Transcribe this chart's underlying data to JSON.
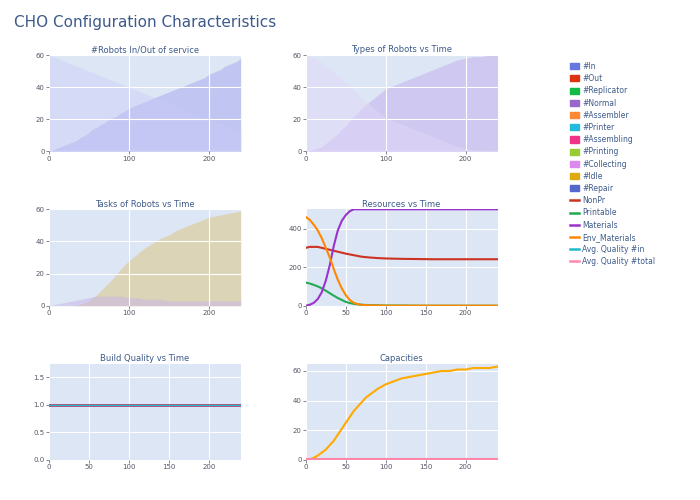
{
  "title": "CHO Configuration Characteristics",
  "title_color": "#3d5a8a",
  "bg_color": "#ffffff",
  "subplot_bg": "#dce6f5",
  "grid_color": "#ffffff",
  "subplots": [
    {
      "title": "#Robots In/Out of service",
      "row": 0,
      "col": 0,
      "xlim": [
        0,
        240
      ],
      "ylim": [
        0,
        60
      ],
      "xticks": [
        0,
        100,
        200
      ],
      "yticks": [
        0,
        20,
        40,
        60
      ],
      "series": [
        {
          "type": "fill",
          "color": "#aaaaee",
          "alpha": 0.55,
          "x": [
            0,
            5,
            10,
            15,
            20,
            25,
            30,
            35,
            40,
            45,
            50,
            55,
            60,
            65,
            70,
            75,
            80,
            85,
            90,
            95,
            100,
            105,
            110,
            115,
            120,
            125,
            130,
            135,
            140,
            145,
            150,
            155,
            160,
            165,
            170,
            175,
            180,
            185,
            190,
            195,
            200,
            205,
            210,
            215,
            220,
            225,
            230,
            235,
            240
          ],
          "y": [
            0,
            1,
            2,
            3,
            4,
            5,
            6,
            7,
            9,
            10,
            12,
            14,
            15,
            17,
            18,
            20,
            21,
            22,
            24,
            25,
            27,
            28,
            29,
            30,
            31,
            32,
            33,
            34,
            35,
            36,
            37,
            38,
            39,
            40,
            41,
            42,
            43,
            44,
            45,
            46,
            48,
            49,
            50,
            51,
            53,
            54,
            55,
            56,
            58
          ]
        },
        {
          "type": "fill",
          "color": "#ccccf8",
          "alpha": 0.4,
          "x": [
            0,
            5,
            10,
            15,
            20,
            25,
            30,
            35,
            40,
            45,
            50,
            55,
            60,
            65,
            70,
            75,
            80,
            85,
            90,
            95,
            100,
            105,
            110,
            115,
            120,
            125,
            130,
            135,
            140,
            145,
            150,
            155,
            160,
            165,
            170,
            175,
            180,
            185,
            190,
            195,
            200,
            205,
            210,
            215,
            220,
            225,
            230,
            235,
            240
          ],
          "y": [
            60,
            59,
            58,
            57,
            56,
            55,
            54,
            53,
            52,
            51,
            50,
            49,
            48,
            47,
            46,
            45,
            44,
            43,
            42,
            41,
            40,
            39,
            38,
            37,
            36,
            35,
            34,
            33,
            32,
            31,
            30,
            29,
            28,
            27,
            26,
            25,
            24,
            23,
            22,
            21,
            20,
            19,
            18,
            17,
            16,
            15,
            14,
            13,
            12
          ]
        }
      ]
    },
    {
      "title": "Types of Robots vs Time",
      "row": 0,
      "col": 1,
      "xlim": [
        0,
        240
      ],
      "ylim": [
        0,
        60
      ],
      "xticks": [
        0,
        100,
        200
      ],
      "yticks": [
        0,
        20,
        40,
        60
      ],
      "series": [
        {
          "type": "fill",
          "color": "#c8b8f0",
          "alpha": 0.65,
          "x": [
            0,
            5,
            10,
            15,
            20,
            25,
            30,
            35,
            40,
            45,
            50,
            55,
            60,
            65,
            70,
            75,
            80,
            85,
            90,
            95,
            100,
            110,
            120,
            130,
            140,
            150,
            160,
            170,
            180,
            190,
            200,
            210,
            220,
            230,
            240
          ],
          "y": [
            0,
            0.5,
            1,
            2,
            3,
            5,
            7,
            9,
            11,
            14,
            16,
            19,
            22,
            24,
            27,
            29,
            31,
            33,
            35,
            37,
            39,
            41,
            43,
            45,
            47,
            49,
            51,
            53,
            55,
            57,
            58,
            59,
            59,
            60,
            60
          ]
        },
        {
          "type": "fill",
          "color": "#e0d8f8",
          "alpha": 0.5,
          "x": [
            0,
            5,
            10,
            15,
            20,
            25,
            30,
            35,
            40,
            45,
            50,
            55,
            60,
            65,
            70,
            75,
            80,
            85,
            90,
            95,
            100,
            110,
            120,
            130,
            140,
            150,
            160,
            170,
            180,
            190,
            200,
            210,
            220,
            230,
            240
          ],
          "y": [
            60,
            59,
            58,
            57,
            55,
            53,
            51,
            49,
            47,
            45,
            43,
            41,
            38,
            36,
            33,
            31,
            29,
            27,
            25,
            23,
            21,
            19,
            17,
            15,
            13,
            11,
            9,
            7,
            5,
            3,
            2,
            1,
            1,
            0,
            0
          ]
        }
      ]
    },
    {
      "title": "Tasks of Robots vs Time",
      "row": 1,
      "col": 0,
      "xlim": [
        0,
        240
      ],
      "ylim": [
        0,
        60
      ],
      "xticks": [
        0,
        100,
        200
      ],
      "yticks": [
        0,
        20,
        40,
        60
      ],
      "series": [
        {
          "type": "fill",
          "color": "#ddd0a8",
          "alpha": 0.8,
          "x": [
            0,
            10,
            20,
            30,
            40,
            50,
            60,
            70,
            80,
            90,
            100,
            110,
            120,
            130,
            140,
            150,
            160,
            170,
            180,
            190,
            200,
            210,
            220,
            230,
            240
          ],
          "y": [
            0,
            0,
            0,
            0,
            1,
            3,
            7,
            12,
            17,
            23,
            28,
            32,
            36,
            39,
            42,
            44,
            47,
            49,
            51,
            53,
            55,
            56,
            57,
            58,
            59
          ]
        },
        {
          "type": "fill",
          "color": "#c8b4e8",
          "alpha": 0.5,
          "x": [
            0,
            10,
            20,
            30,
            40,
            50,
            60,
            70,
            80,
            90,
            100,
            110,
            120,
            130,
            140,
            150,
            160,
            170,
            180,
            190,
            200,
            210,
            220,
            230,
            240
          ],
          "y": [
            0,
            1,
            2,
            3,
            4,
            5,
            6,
            6,
            6,
            6,
            5,
            5,
            4,
            4,
            4,
            3,
            3,
            3,
            3,
            3,
            3,
            3,
            3,
            3,
            3
          ]
        }
      ]
    },
    {
      "title": "Resources vs Time",
      "row": 1,
      "col": 1,
      "xlim": [
        0,
        240
      ],
      "ylim": [
        0,
        500
      ],
      "xticks": [
        0,
        50,
        100,
        150,
        200
      ],
      "yticks": [
        0,
        200,
        400
      ],
      "series": [
        {
          "type": "line",
          "color": "#cc3322",
          "linewidth": 1.5,
          "x": [
            0,
            5,
            10,
            15,
            20,
            25,
            30,
            35,
            40,
            45,
            50,
            55,
            60,
            65,
            70,
            80,
            90,
            100,
            120,
            140,
            160,
            180,
            200,
            220,
            240
          ],
          "y": [
            300,
            305,
            305,
            305,
            300,
            295,
            290,
            285,
            280,
            275,
            270,
            266,
            262,
            258,
            254,
            250,
            247,
            245,
            243,
            242,
            241,
            241,
            241,
            241,
            241
          ]
        },
        {
          "type": "line",
          "color": "#22aa55",
          "linewidth": 1.5,
          "x": [
            0,
            5,
            10,
            15,
            20,
            25,
            30,
            35,
            40,
            45,
            50,
            55,
            60,
            65,
            70,
            80,
            90,
            100,
            120,
            140,
            160,
            180,
            200,
            220,
            240
          ],
          "y": [
            120,
            115,
            108,
            100,
            90,
            78,
            65,
            52,
            40,
            30,
            20,
            14,
            10,
            7,
            5,
            3,
            2,
            1,
            1,
            0,
            0,
            0,
            0,
            0,
            0
          ]
        },
        {
          "type": "line",
          "color": "#9933cc",
          "linewidth": 1.5,
          "x": [
            0,
            5,
            10,
            15,
            20,
            25,
            30,
            35,
            40,
            45,
            50,
            55,
            60,
            65,
            70,
            80,
            90,
            100,
            120,
            140,
            160,
            180,
            200,
            220,
            240
          ],
          "y": [
            0,
            5,
            15,
            35,
            70,
            130,
            210,
            310,
            390,
            440,
            470,
            490,
            500,
            500,
            500,
            500,
            500,
            500,
            500,
            500,
            500,
            500,
            500,
            500,
            500
          ]
        },
        {
          "type": "line",
          "color": "#ff8800",
          "linewidth": 1.5,
          "x": [
            0,
            5,
            10,
            15,
            20,
            25,
            30,
            35,
            40,
            45,
            50,
            55,
            60,
            65,
            70,
            80,
            90,
            100,
            120,
            140,
            160,
            180,
            200,
            220,
            240
          ],
          "y": [
            460,
            445,
            420,
            390,
            350,
            300,
            250,
            190,
            135,
            90,
            55,
            30,
            15,
            8,
            4,
            2,
            1,
            0,
            0,
            0,
            0,
            0,
            0,
            0,
            0
          ]
        }
      ]
    },
    {
      "title": "Build Quality vs Time",
      "row": 2,
      "col": 0,
      "xlim": [
        0,
        240
      ],
      "ylim": [
        0,
        1.75
      ],
      "xticks": [
        0,
        50,
        100,
        150,
        200
      ],
      "yticks": [
        0,
        0.5,
        1.0,
        1.5
      ],
      "series": [
        {
          "type": "line",
          "color": "#cc3366",
          "linewidth": 2.0,
          "x": [
            0,
            240
          ],
          "y": [
            1.0,
            1.0
          ]
        },
        {
          "type": "line",
          "color": "#22bbcc",
          "linewidth": 1.0,
          "x": [
            0,
            240
          ],
          "y": [
            1.0,
            1.0
          ]
        }
      ]
    },
    {
      "title": "Capacities",
      "row": 2,
      "col": 1,
      "xlim": [
        0,
        240
      ],
      "ylim": [
        0,
        65
      ],
      "xticks": [
        0,
        50,
        100,
        150,
        200
      ],
      "yticks": [
        0,
        20,
        40,
        60
      ],
      "series": [
        {
          "type": "line",
          "color": "#ffaa00",
          "linewidth": 1.5,
          "x": [
            0,
            5,
            10,
            15,
            20,
            25,
            30,
            35,
            40,
            45,
            50,
            55,
            60,
            65,
            70,
            75,
            80,
            90,
            100,
            110,
            120,
            130,
            140,
            150,
            160,
            170,
            180,
            190,
            200,
            210,
            220,
            230,
            240
          ],
          "y": [
            0,
            0.5,
            1.5,
            3,
            5,
            7,
            10,
            13,
            17,
            21,
            25,
            29,
            33,
            36,
            39,
            42,
            44,
            48,
            51,
            53,
            55,
            56,
            57,
            58,
            59,
            60,
            60,
            61,
            61,
            62,
            62,
            62,
            63
          ]
        },
        {
          "type": "line",
          "color": "#cc44cc",
          "linewidth": 1.0,
          "x": [
            0,
            240
          ],
          "y": [
            0,
            0
          ]
        },
        {
          "type": "line",
          "color": "#22ccdd",
          "linewidth": 1.0,
          "x": [
            0,
            240
          ],
          "y": [
            0,
            0
          ]
        },
        {
          "type": "line",
          "color": "#ff88aa",
          "linewidth": 1.5,
          "x": [
            0,
            240
          ],
          "y": [
            1,
            1
          ]
        }
      ]
    }
  ],
  "legend": {
    "items": [
      {
        "label": "#In",
        "color": "#6677dd",
        "type": "patch"
      },
      {
        "label": "#Out",
        "color": "#dd3311",
        "type": "patch"
      },
      {
        "label": "#Replicator",
        "color": "#11bb44",
        "type": "patch"
      },
      {
        "label": "#Normal",
        "color": "#9966cc",
        "type": "patch"
      },
      {
        "label": "#Assembler",
        "color": "#ff8833",
        "type": "patch"
      },
      {
        "label": "#Printer",
        "color": "#22bbdd",
        "type": "patch"
      },
      {
        "label": "#Assembling",
        "color": "#ee3388",
        "type": "patch"
      },
      {
        "label": "#Printing",
        "color": "#99cc33",
        "type": "patch"
      },
      {
        "label": "#Collecting",
        "color": "#dd88ee",
        "type": "patch"
      },
      {
        "label": "#Idle",
        "color": "#ddaa11",
        "type": "patch"
      },
      {
        "label": "#Repair",
        "color": "#5566cc",
        "type": "patch"
      },
      {
        "label": "NonPr",
        "color": "#cc3322",
        "type": "line"
      },
      {
        "label": "Printable",
        "color": "#22aa55",
        "type": "line"
      },
      {
        "label": "Materials",
        "color": "#9933cc",
        "type": "line"
      },
      {
        "label": "Env_Materials",
        "color": "#ff8800",
        "type": "line"
      },
      {
        "label": "Avg. Quality #in",
        "color": "#22bbcc",
        "type": "line"
      },
      {
        "label": "Avg. Quality #total",
        "color": "#ff88aa",
        "type": "line"
      }
    ]
  }
}
